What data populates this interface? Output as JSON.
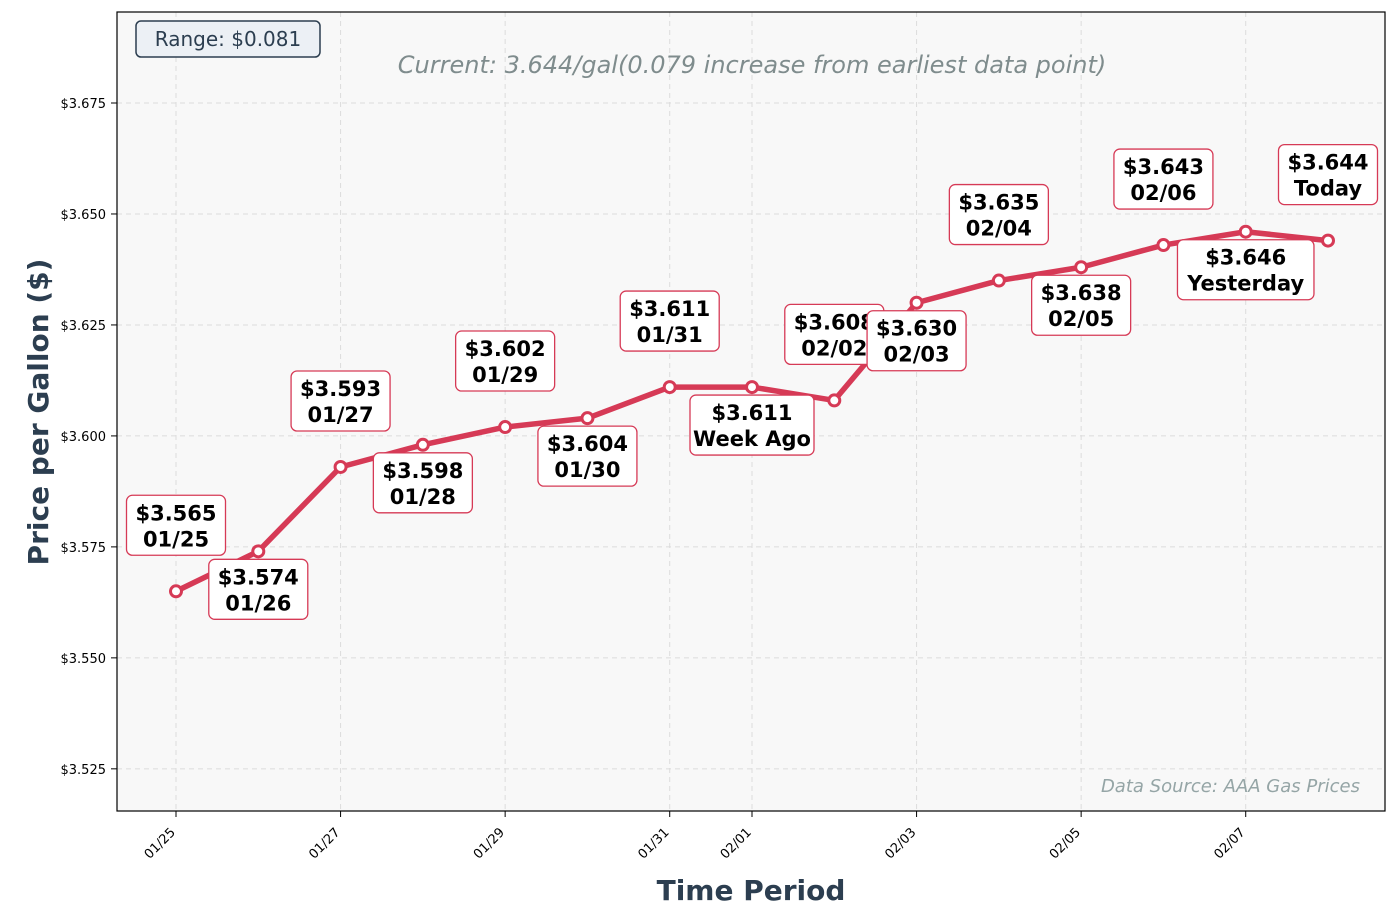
{
  "chart_data": {
    "type": "line",
    "x": [
      "01/25",
      "01/26",
      "01/27",
      "01/28",
      "01/29",
      "01/30",
      "01/31",
      "02/01",
      "02/02",
      "02/03",
      "02/04",
      "02/05",
      "02/06",
      "02/07",
      "02/08"
    ],
    "values": [
      3.565,
      3.574,
      3.593,
      3.598,
      3.602,
      3.604,
      3.611,
      3.611,
      3.608,
      3.63,
      3.635,
      3.638,
      3.643,
      3.646,
      3.644
    ],
    "point_labels": [
      {
        "price": "$3.565",
        "tag": "01/25"
      },
      {
        "price": "$3.574",
        "tag": "01/26"
      },
      {
        "price": "$3.593",
        "tag": "01/27"
      },
      {
        "price": "$3.598",
        "tag": "01/28"
      },
      {
        "price": "$3.602",
        "tag": "01/29"
      },
      {
        "price": "$3.604",
        "tag": "01/30"
      },
      {
        "price": "$3.611",
        "tag": "01/31"
      },
      {
        "price": "$3.611",
        "tag": "Week Ago"
      },
      {
        "price": "$3.608",
        "tag": "02/02"
      },
      {
        "price": "$3.630",
        "tag": "02/03"
      },
      {
        "price": "$3.635",
        "tag": "02/04"
      },
      {
        "price": "$3.638",
        "tag": "02/05"
      },
      {
        "price": "$3.643",
        "tag": "02/06"
      },
      {
        "price": "$3.646",
        "tag": "Yesterday"
      },
      {
        "price": "$3.644",
        "tag": "Today"
      }
    ],
    "label_side": [
      "above",
      "below",
      "above",
      "below",
      "above",
      "below",
      "above",
      "below",
      "above",
      "below",
      "above",
      "below",
      "above",
      "below",
      "above"
    ],
    "title": "",
    "subtitle": "Current: 3.644/gal(0.079 increase from earliest data point)",
    "xlabel": "Time Period",
    "ylabel": "Price per Gallon ($)",
    "ylim": [
      3.5155,
      3.6955
    ],
    "yticks": [
      3.525,
      3.55,
      3.575,
      3.6,
      3.625,
      3.65,
      3.675
    ],
    "ytick_labels": [
      "$3.525",
      "$3.550",
      "$3.575",
      "$3.600",
      "$3.625",
      "$3.650",
      "$3.675"
    ],
    "xticks": [
      "01/25",
      "01/27",
      "01/29",
      "01/31",
      "02/01",
      "02/03",
      "02/05",
      "02/07"
    ],
    "grid": true,
    "line_color": "#d63a56",
    "marker_fill": "#ffffff",
    "range_text": "Range: $0.081",
    "source_text": "Data Source: AAA Gas Prices",
    "colors": {
      "plot_bg": "#f8f8f8",
      "label_border": "#d63a56",
      "title_text": "#2c3e50",
      "subtitle_text": "#7f8c8d",
      "source_text": "#95a5a6",
      "range_box_bg": "#ecf0f5"
    }
  }
}
